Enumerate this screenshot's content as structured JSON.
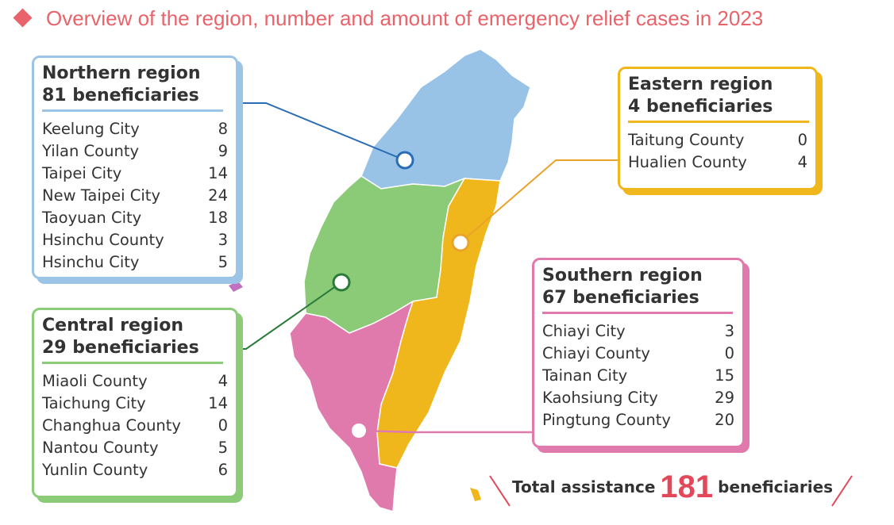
{
  "title": "Overview of the region, number and amount of emergency relief cases in 2023",
  "regions": [
    {
      "name": "Northern region",
      "total": "81 beneficiaries",
      "items": [
        {
          "name": "Keelung City",
          "value": 8
        },
        {
          "name": "Yilan County",
          "value": 9
        },
        {
          "name": "Taipei City",
          "value": 14
        },
        {
          "name": "New Taipei City",
          "value": 24
        },
        {
          "name": "Taoyuan City",
          "value": 18
        },
        {
          "name": "Hsinchu County",
          "value": 3
        },
        {
          "name": "Hsinchu City",
          "value": 5
        }
      ]
    },
    {
      "name": "Central region",
      "total": "29 beneficiaries",
      "items": [
        {
          "name": "Miaoli County",
          "value": 4
        },
        {
          "name": "Taichung City",
          "value": 14
        },
        {
          "name": "Changhua County",
          "value": 0
        },
        {
          "name": "Nantou County",
          "value": 5
        },
        {
          "name": "Yunlin County",
          "value": 6
        }
      ]
    },
    {
      "name": "Eastern region",
      "total": "4 beneficiaries",
      "items": [
        {
          "name": "Taitung County",
          "value": 0
        },
        {
          "name": "Hualien County",
          "value": 4
        }
      ]
    },
    {
      "name": "Southern region",
      "total": "67 beneficiaries",
      "items": [
        {
          "name": "Chiayi City",
          "value": 3
        },
        {
          "name": "Chiayi County",
          "value": 0
        },
        {
          "name": "Tainan City",
          "value": 15
        },
        {
          "name": "Kaohsiung City",
          "value": 29
        },
        {
          "name": "Pingtung County",
          "value": 20
        }
      ]
    }
  ],
  "total": {
    "label": "Total assistance",
    "value": 181,
    "unit": "beneficiaries"
  }
}
